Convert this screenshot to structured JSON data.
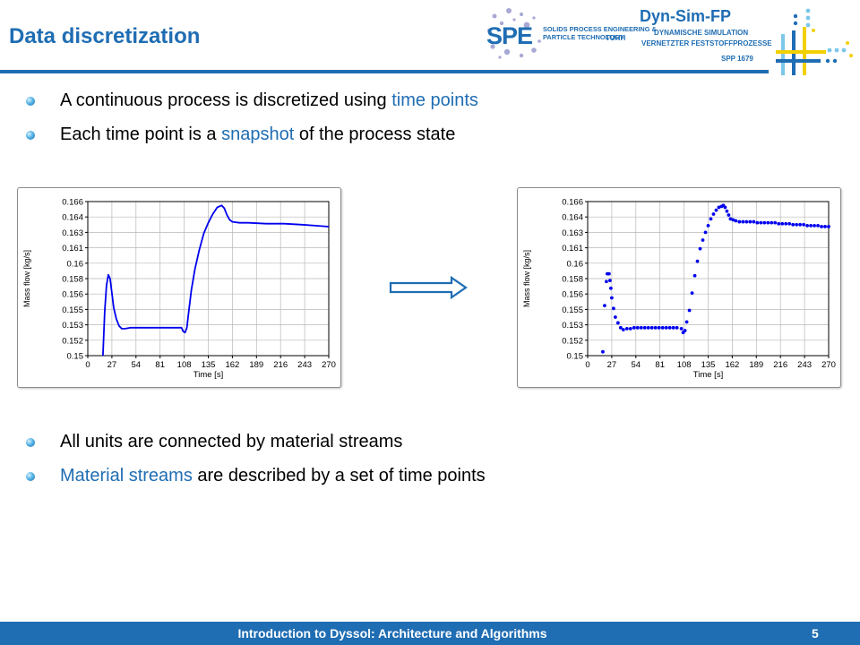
{
  "slide": {
    "title": "Data discretization",
    "page_number": "5",
    "footer": "Introduction to Dyssol: Architecture and Algorithms"
  },
  "logos": {
    "spe": {
      "mark": "SPE",
      "line1": "SOLIDS PROCESS ENGINEERING &",
      "line2": "PARTICLE TECHNOLOGY",
      "tuhh": "TUHH"
    },
    "dyn": {
      "title": "Dyn-Sim-FP",
      "line1": "DYNAMISCHE SIMULATION",
      "line2": "VERNETZTER FESTSTOFFPROZESSE",
      "spp": "SPP 1679"
    }
  },
  "bullets_top": [
    {
      "before": "A continuous process is discretized using ",
      "highlight": "time points",
      "after": ""
    },
    {
      "before": "Each time point is a ",
      "highlight": "snapshot",
      "after": " of the process state"
    }
  ],
  "bullets_bottom": [
    {
      "before": "All units are connected by material streams",
      "highlight": "",
      "after": ""
    },
    {
      "before": "",
      "highlight": "Material streams",
      "after": " are described by a set of time points"
    }
  ],
  "colors": {
    "accent": "#1f6db3",
    "series": "#0000ee"
  },
  "icons": {
    "bullet": "bullet-dot-icon",
    "arrow": "right-arrow-icon"
  },
  "chart_data": [
    {
      "type": "line",
      "xlabel": "Time [s]",
      "ylabel": "Mass flow [kg/s]",
      "xlim": [
        0,
        270
      ],
      "ylim": [
        0.15,
        0.166
      ],
      "xticks": [
        0,
        27,
        54,
        81,
        108,
        135,
        162,
        189,
        216,
        243,
        270
      ],
      "ytick_labels": [
        "0.15",
        "0.152",
        "0.153",
        "0.155",
        "0.156",
        "0.158",
        "0.16",
        "0.161",
        "0.163",
        "0.164",
        "0.166"
      ],
      "grid": true,
      "series": [
        {
          "x": [
            17,
            19,
            21,
            23,
            25,
            27,
            29,
            32,
            35,
            38,
            42,
            48,
            55,
            65,
            80,
            95,
            105,
            107,
            109,
            111,
            113,
            116,
            120,
            125,
            130,
            135,
            140,
            145,
            150,
            153,
            156,
            159,
            162,
            170,
            180,
            200,
            220,
            240,
            255,
            270
          ],
          "y": [
            0.15,
            0.1546,
            0.1573,
            0.1584,
            0.158,
            0.1565,
            0.155,
            0.1538,
            0.1531,
            0.1528,
            0.1528,
            0.1529,
            0.1529,
            0.1529,
            0.1529,
            0.1529,
            0.1529,
            0.1525,
            0.1524,
            0.1529,
            0.1545,
            0.1568,
            0.159,
            0.161,
            0.1627,
            0.1638,
            0.1647,
            0.1654,
            0.1656,
            0.1653,
            0.1646,
            0.1641,
            0.1639,
            0.1638,
            0.1638,
            0.1637,
            0.1637,
            0.1636,
            0.1635,
            0.1634
          ]
        }
      ]
    },
    {
      "type": "scatter",
      "xlabel": "Time [s]",
      "ylabel": "Mass flow [kg/s]",
      "xlim": [
        0,
        270
      ],
      "ylim": [
        0.15,
        0.166
      ],
      "xticks": [
        0,
        27,
        54,
        81,
        108,
        135,
        162,
        189,
        216,
        243,
        270
      ],
      "ytick_labels": [
        "0.15",
        "0.152",
        "0.153",
        "0.155",
        "0.156",
        "0.158",
        "0.16",
        "0.161",
        "0.163",
        "0.164",
        "0.166"
      ],
      "grid": true,
      "series": [
        {
          "x": [
            17,
            19,
            21,
            22,
            24,
            25,
            26,
            27,
            29,
            31,
            34,
            37,
            40,
            44,
            48,
            52,
            56,
            60,
            64,
            68,
            72,
            76,
            80,
            84,
            88,
            92,
            96,
            100,
            105,
            107,
            109,
            111,
            114,
            117,
            120,
            123,
            126,
            129,
            132,
            135,
            138,
            141,
            144,
            147,
            150,
            152,
            154,
            156,
            158,
            160,
            163,
            166,
            170,
            174,
            178,
            182,
            186,
            190,
            194,
            198,
            202,
            206,
            210,
            214,
            218,
            222,
            226,
            230,
            234,
            238,
            242,
            246,
            250,
            254,
            258,
            262,
            266,
            270
          ],
          "y": [
            0.1504,
            0.1552,
            0.1577,
            0.1585,
            0.1585,
            0.1578,
            0.157,
            0.156,
            0.1549,
            0.154,
            0.1534,
            0.1529,
            0.1527,
            0.1528,
            0.1528,
            0.1529,
            0.1529,
            0.1529,
            0.1529,
            0.1529,
            0.1529,
            0.1529,
            0.1529,
            0.1529,
            0.1529,
            0.1529,
            0.1529,
            0.1529,
            0.1528,
            0.1524,
            0.1526,
            0.1535,
            0.1547,
            0.1565,
            0.1583,
            0.1598,
            0.1611,
            0.162,
            0.1628,
            0.1635,
            0.1642,
            0.1647,
            0.1651,
            0.1654,
            0.1655,
            0.1656,
            0.1654,
            0.165,
            0.1646,
            0.1642,
            0.1641,
            0.164,
            0.1639,
            0.1639,
            0.1639,
            0.1639,
            0.1639,
            0.1638,
            0.1638,
            0.1638,
            0.1638,
            0.1638,
            0.1638,
            0.1637,
            0.1637,
            0.1637,
            0.1637,
            0.1636,
            0.1636,
            0.1636,
            0.1636,
            0.1635,
            0.1635,
            0.1635,
            0.1635,
            0.1634,
            0.1634,
            0.1634
          ]
        }
      ]
    }
  ]
}
